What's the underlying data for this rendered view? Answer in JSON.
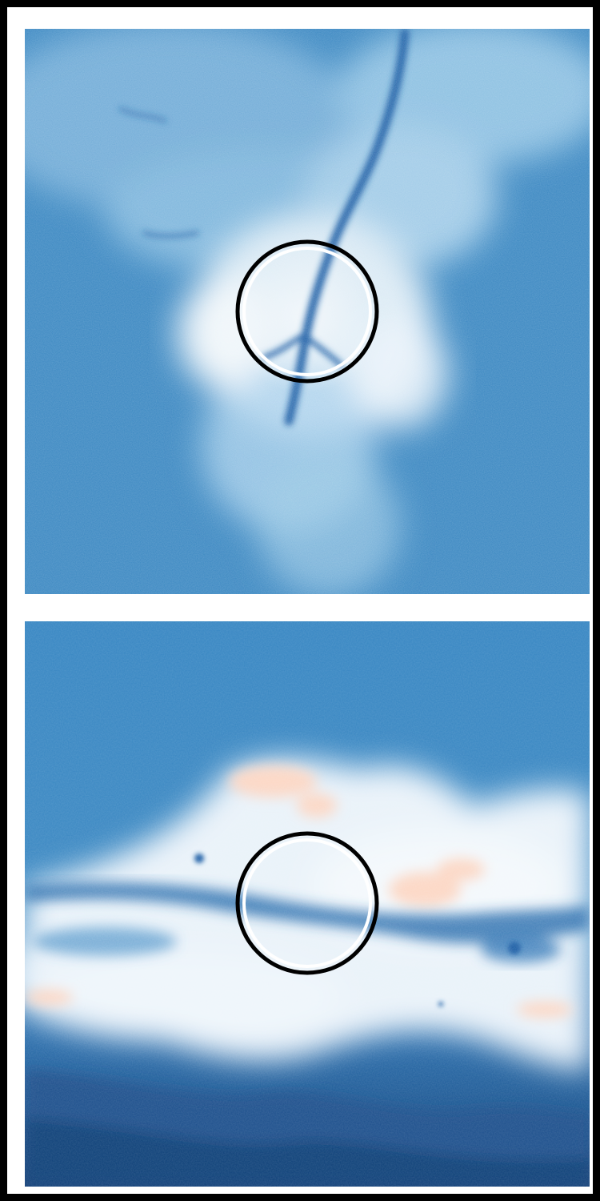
{
  "panels": [
    {
      "id": "top",
      "view": "face-on",
      "colormap": "blue-white-red",
      "marker": "circle"
    },
    {
      "id": "bottom",
      "view": "edge-on",
      "colormap": "blue-white-red",
      "marker": "circle"
    }
  ],
  "colors": {
    "frame": "#000000",
    "background": "#ffffff",
    "deep_blue": "#0d3f78",
    "mid_blue": "#3b88c2",
    "light_blue": "#8cc0e2",
    "white_gas": "#f2f7fb",
    "warm_peach": "#fcd7c4",
    "marker_outer": "#000000",
    "marker_inner": "#ffffff"
  }
}
